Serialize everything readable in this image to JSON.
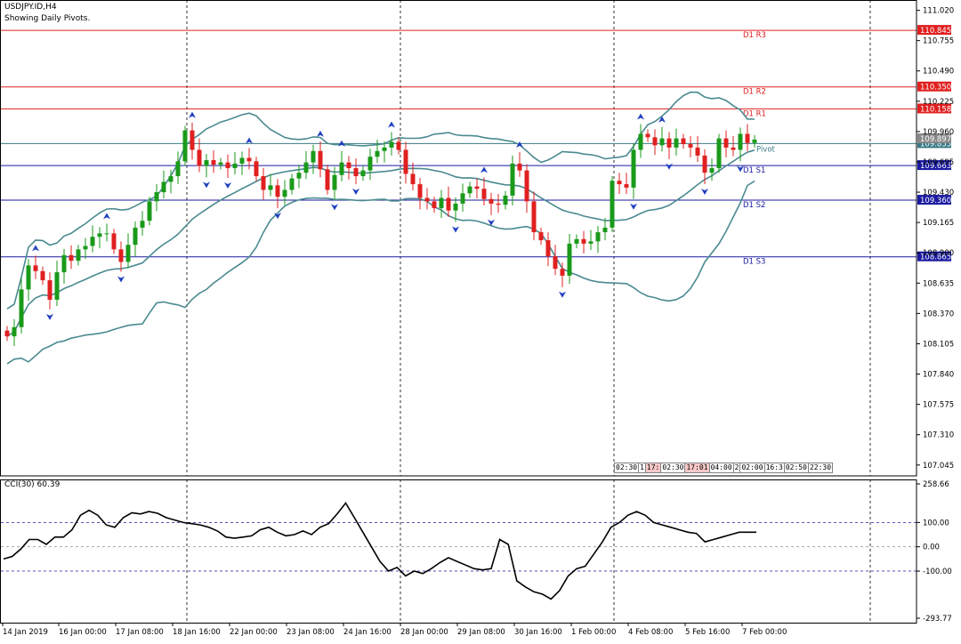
{
  "window": {
    "symbol_line": "USDJPY.ID,H4",
    "status_line": "Showing Daily Pivots."
  },
  "indicator": {
    "label": "CCI(30) 60.39",
    "axis_labels": [
      "258.66",
      "100.00",
      "0.00",
      "-100.00",
      "-293.77"
    ]
  },
  "price_axis": {
    "ticks": [
      "111.020",
      "110.755",
      "110.490",
      "110.225",
      "109.960",
      "109.695",
      "109.430",
      "109.165",
      "108.900",
      "108.635",
      "108.370",
      "108.105",
      "107.840",
      "107.575",
      "107.310",
      "107.045"
    ]
  },
  "pivots": [
    {
      "label": "D1 R3",
      "price": "110.845",
      "kind": "resistance"
    },
    {
      "label": "D1 R2",
      "price": "110.350",
      "kind": "resistance"
    },
    {
      "label": "D1 R1",
      "price": "110.158",
      "kind": "resistance"
    },
    {
      "label": "Pivot",
      "price": "109.855",
      "kind": "pivot"
    },
    {
      "label": "D1 S1",
      "price": "109.663",
      "kind": "support"
    },
    {
      "label": "D1 S2",
      "price": "109.360",
      "kind": "support"
    },
    {
      "label": "D1 S3",
      "price": "108.865",
      "kind": "support"
    }
  ],
  "current_price_label": "109.897",
  "time_axis": [
    "14 Jan 2019",
    "16 Jan 00:00",
    "17 Jan 08:00",
    "18 Jan 16:00",
    "22 Jan 00:00",
    "23 Jan 08:00",
    "24 Jan 16:00",
    "28 Jan 00:00",
    "29 Jan 08:00",
    "30 Jan 16:00",
    "1 Feb 00:00",
    "4 Feb 08:00",
    "5 Feb 16:00",
    "7 Feb 00:00"
  ],
  "session_boxes": [
    {
      "label": "02:30",
      "pink": false
    },
    {
      "label": "1",
      "pink": false
    },
    {
      "label": "17:",
      "pink": true
    },
    {
      "label": "02:30",
      "pink": false
    },
    {
      "label": "17:01",
      "pink": true
    },
    {
      "label": "04:00",
      "pink": false
    },
    {
      "label": "2",
      "pink": false
    },
    {
      "label": "02:00",
      "pink": false
    },
    {
      "label": "16:3",
      "pink": false
    },
    {
      "label": "02:50",
      "pink": false
    },
    {
      "label": "22:30",
      "pink": false
    }
  ],
  "colors": {
    "bull": "#1a9a1a",
    "bear": "#e02020",
    "resistance": "#e02020",
    "support": "#1a1aa0",
    "pivot": "#3a7a86",
    "bands": "#4a8a90",
    "fractal": "#2040c0"
  },
  "chart_data": {
    "type": "candlestick",
    "price_range": [
      106.95,
      111.11
    ],
    "cci_range": [
      -293.77,
      258.66
    ],
    "closes": [
      108.17,
      108.25,
      108.58,
      108.79,
      108.74,
      108.66,
      108.49,
      108.73,
      108.88,
      108.83,
      108.93,
      108.96,
      109.04,
      109.07,
      109.07,
      108.93,
      108.82,
      108.97,
      109.12,
      109.18,
      109.35,
      109.43,
      109.52,
      109.57,
      109.7,
      109.97,
      109.8,
      109.66,
      109.71,
      109.67,
      109.69,
      109.64,
      109.68,
      109.73,
      109.7,
      109.57,
      109.45,
      109.49,
      109.39,
      109.45,
      109.55,
      109.6,
      109.69,
      109.79,
      109.63,
      109.45,
      109.58,
      109.69,
      109.64,
      109.57,
      109.62,
      109.74,
      109.79,
      109.82,
      109.87,
      109.8,
      109.59,
      109.5,
      109.38,
      109.35,
      109.29,
      109.38,
      109.27,
      109.33,
      109.42,
      109.48,
      109.46,
      109.37,
      109.33,
      109.32,
      109.4,
      109.68,
      109.62,
      109.35,
      109.08,
      109.01,
      108.87,
      108.76,
      108.7,
      108.98,
      109.02,
      108.98,
      109.0,
      109.08,
      109.12,
      109.53,
      109.5,
      109.47,
      109.8,
      109.94,
      109.91,
      109.84,
      109.9,
      109.82,
      109.9,
      109.85,
      109.82,
      109.75,
      109.6,
      109.64,
      109.9,
      109.82,
      109.8,
      109.94,
      109.86,
      109.89
    ],
    "cci": [
      -50,
      -40,
      -10,
      30,
      30,
      10,
      40,
      40,
      70,
      130,
      150,
      130,
      90,
      80,
      120,
      140,
      135,
      145,
      138,
      120,
      110,
      100,
      95,
      90,
      80,
      65,
      40,
      35,
      40,
      45,
      70,
      80,
      60,
      45,
      50,
      65,
      50,
      80,
      95,
      135,
      180,
      120,
      60,
      0,
      -60,
      -100,
      -85,
      -120,
      -100,
      -110,
      -90,
      -65,
      -45,
      -60,
      -75,
      -90,
      -95,
      -90,
      30,
      10,
      -140,
      -165,
      -185,
      -195,
      -215,
      -180,
      -120,
      -90,
      -80,
      -30,
      20,
      80,
      100,
      130,
      145,
      130,
      100,
      90,
      80,
      70,
      60,
      55,
      20,
      30,
      40,
      50,
      60,
      60,
      60
    ]
  }
}
